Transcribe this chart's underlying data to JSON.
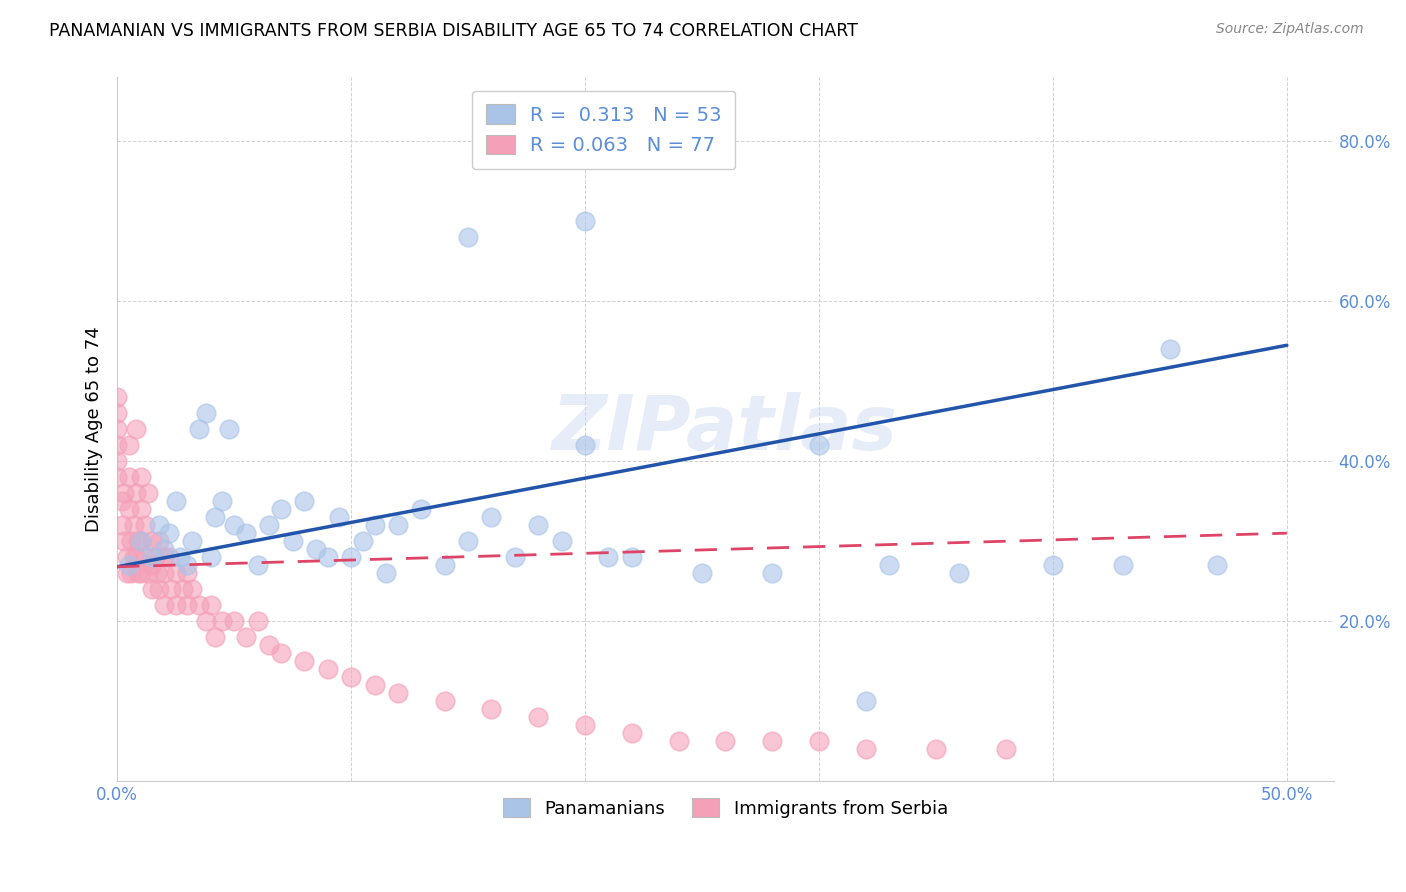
{
  "title": "PANAMANIAN VS IMMIGRANTS FROM SERBIA DISABILITY AGE 65 TO 74 CORRELATION CHART",
  "source": "Source: ZipAtlas.com",
  "ylabel": "Disability Age 65 to 74",
  "xlim": [
    0.0,
    0.52
  ],
  "ylim": [
    0.0,
    0.88
  ],
  "xticks": [
    0.0,
    0.1,
    0.2,
    0.3,
    0.4,
    0.5
  ],
  "yticks": [
    0.0,
    0.2,
    0.4,
    0.6,
    0.8
  ],
  "blue_color": "#aac4e8",
  "pink_color": "#f4a0b8",
  "blue_line_color": "#2255aa",
  "pink_line_color": "#dd4466",
  "legend_R1": "0.313",
  "legend_N1": "53",
  "legend_R2": "0.063",
  "legend_N2": "77",
  "watermark": "ZIPatlas",
  "blue_x": [
    0.005,
    0.01,
    0.015,
    0.018,
    0.02,
    0.022,
    0.025,
    0.027,
    0.03,
    0.032,
    0.035,
    0.038,
    0.04,
    0.042,
    0.045,
    0.048,
    0.05,
    0.055,
    0.06,
    0.065,
    0.07,
    0.075,
    0.08,
    0.085,
    0.09,
    0.095,
    0.1,
    0.105,
    0.11,
    0.115,
    0.12,
    0.13,
    0.14,
    0.15,
    0.16,
    0.17,
    0.18,
    0.19,
    0.2,
    0.21,
    0.22,
    0.25,
    0.28,
    0.3,
    0.33,
    0.36,
    0.4,
    0.43,
    0.45,
    0.47,
    0.15,
    0.2,
    0.32
  ],
  "blue_y": [
    0.27,
    0.3,
    0.28,
    0.32,
    0.29,
    0.31,
    0.35,
    0.28,
    0.27,
    0.3,
    0.44,
    0.46,
    0.28,
    0.33,
    0.35,
    0.44,
    0.32,
    0.31,
    0.27,
    0.32,
    0.34,
    0.3,
    0.35,
    0.29,
    0.28,
    0.33,
    0.28,
    0.3,
    0.32,
    0.26,
    0.32,
    0.34,
    0.27,
    0.3,
    0.33,
    0.28,
    0.32,
    0.3,
    0.42,
    0.28,
    0.28,
    0.26,
    0.26,
    0.42,
    0.27,
    0.26,
    0.27,
    0.27,
    0.54,
    0.27,
    0.68,
    0.7,
    0.1
  ],
  "pink_x": [
    0.0,
    0.0,
    0.0,
    0.0,
    0.0,
    0.0,
    0.002,
    0.002,
    0.003,
    0.003,
    0.004,
    0.004,
    0.005,
    0.005,
    0.005,
    0.006,
    0.006,
    0.007,
    0.007,
    0.008,
    0.008,
    0.008,
    0.009,
    0.009,
    0.01,
    0.01,
    0.01,
    0.01,
    0.012,
    0.012,
    0.013,
    0.013,
    0.015,
    0.015,
    0.015,
    0.016,
    0.017,
    0.018,
    0.018,
    0.02,
    0.02,
    0.02,
    0.022,
    0.023,
    0.025,
    0.025,
    0.028,
    0.03,
    0.03,
    0.032,
    0.035,
    0.038,
    0.04,
    0.042,
    0.045,
    0.05,
    0.055,
    0.06,
    0.065,
    0.07,
    0.08,
    0.09,
    0.1,
    0.11,
    0.12,
    0.14,
    0.16,
    0.18,
    0.2,
    0.22,
    0.24,
    0.26,
    0.28,
    0.3,
    0.32,
    0.35,
    0.38
  ],
  "pink_y": [
    0.44,
    0.46,
    0.48,
    0.42,
    0.4,
    0.38,
    0.35,
    0.32,
    0.36,
    0.3,
    0.28,
    0.26,
    0.42,
    0.38,
    0.34,
    0.3,
    0.26,
    0.32,
    0.28,
    0.44,
    0.36,
    0.28,
    0.3,
    0.26,
    0.38,
    0.34,
    0.3,
    0.26,
    0.32,
    0.28,
    0.36,
    0.26,
    0.3,
    0.27,
    0.24,
    0.28,
    0.26,
    0.3,
    0.24,
    0.28,
    0.26,
    0.22,
    0.28,
    0.24,
    0.26,
    0.22,
    0.24,
    0.26,
    0.22,
    0.24,
    0.22,
    0.2,
    0.22,
    0.18,
    0.2,
    0.2,
    0.18,
    0.2,
    0.17,
    0.16,
    0.15,
    0.14,
    0.13,
    0.12,
    0.11,
    0.1,
    0.09,
    0.08,
    0.07,
    0.06,
    0.05,
    0.05,
    0.05,
    0.05,
    0.04,
    0.04,
    0.04
  ],
  "blue_line_x": [
    0.0,
    0.5
  ],
  "blue_line_y": [
    0.268,
    0.545
  ],
  "pink_line_x": [
    0.0,
    0.5
  ],
  "pink_line_y": [
    0.268,
    0.31
  ]
}
